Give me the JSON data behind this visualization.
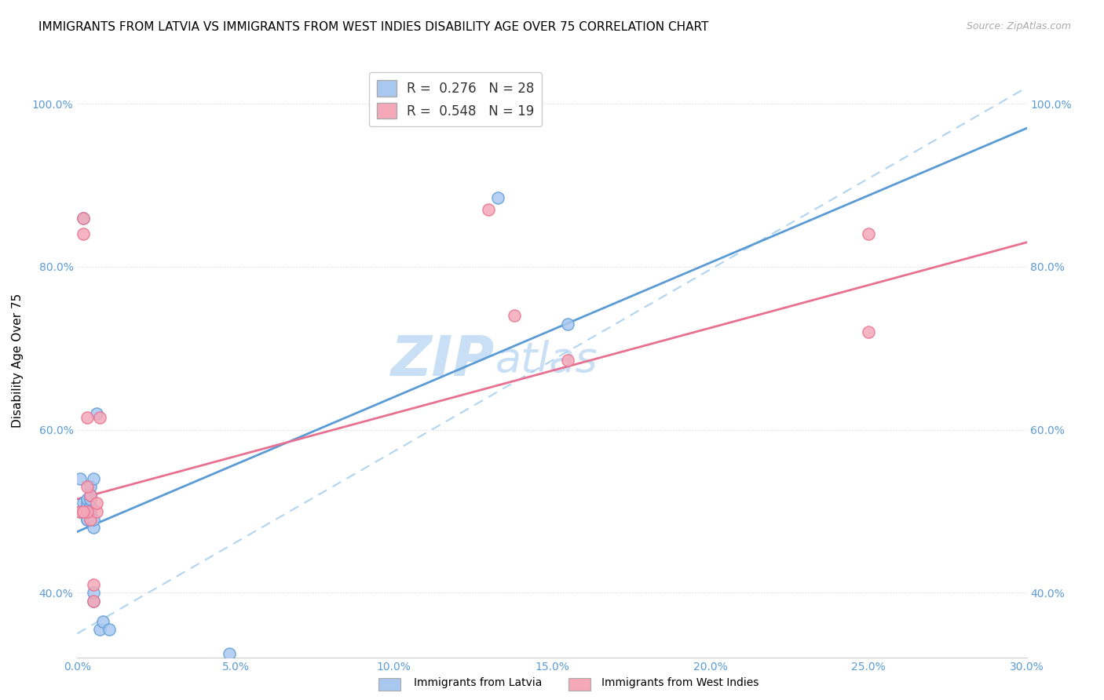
{
  "title": "IMMIGRANTS FROM LATVIA VS IMMIGRANTS FROM WEST INDIES DISABILITY AGE OVER 75 CORRELATION CHART",
  "source": "Source: ZipAtlas.com",
  "xlabel": "",
  "ylabel": "Disability Age Over 75",
  "legend_label1": "Immigrants from Latvia",
  "legend_label2": "Immigrants from West Indies",
  "R1": 0.276,
  "N1": 28,
  "R2": 0.548,
  "N2": 19,
  "color1": "#a8c8f0",
  "color1_line": "#5b9bd5",
  "color2": "#f5a8b8",
  "color2_line": "#e87090",
  "dashed_line_color": "#a8d0f0",
  "watermark_zip": "ZIP",
  "watermark_atlas": "atlas",
  "xlim": [
    0.0,
    0.3
  ],
  "ylim": [
    0.32,
    1.05
  ],
  "xticks": [
    0.0,
    0.05,
    0.1,
    0.15,
    0.2,
    0.25,
    0.3
  ],
  "yticks": [
    0.4,
    0.6,
    0.8,
    1.0
  ],
  "scatter_latvia_x": [
    0.001,
    0.001,
    0.002,
    0.002,
    0.003,
    0.003,
    0.003,
    0.003,
    0.003,
    0.003,
    0.004,
    0.004,
    0.004,
    0.004,
    0.004,
    0.005,
    0.005,
    0.005,
    0.005,
    0.005,
    0.006,
    0.007,
    0.008,
    0.01,
    0.133,
    0.155,
    0.048,
    0.002
  ],
  "scatter_latvia_y": [
    0.5,
    0.54,
    0.5,
    0.51,
    0.49,
    0.5,
    0.505,
    0.51,
    0.515,
    0.49,
    0.5,
    0.505,
    0.515,
    0.52,
    0.53,
    0.39,
    0.4,
    0.48,
    0.49,
    0.54,
    0.62,
    0.355,
    0.365,
    0.355,
    0.885,
    0.73,
    0.325,
    0.86
  ],
  "scatter_westindies_x": [
    0.001,
    0.002,
    0.002,
    0.003,
    0.004,
    0.004,
    0.005,
    0.005,
    0.006,
    0.006,
    0.007,
    0.138,
    0.155,
    0.25,
    0.25,
    0.13,
    0.003,
    0.003,
    0.002
  ],
  "scatter_westindies_y": [
    0.5,
    0.84,
    0.86,
    0.615,
    0.49,
    0.52,
    0.39,
    0.41,
    0.5,
    0.51,
    0.615,
    0.74,
    0.685,
    0.72,
    0.84,
    0.87,
    0.5,
    0.53,
    0.5
  ],
  "title_fontsize": 11,
  "axis_label_fontsize": 11,
  "tick_fontsize": 10,
  "legend_fontsize": 12,
  "watermark_fontsize": 52,
  "watermark_color": "#ccdff5",
  "tick_color": "#5b9bd5",
  "grid_color": "#d8d8d8",
  "grid_style": "dotted"
}
